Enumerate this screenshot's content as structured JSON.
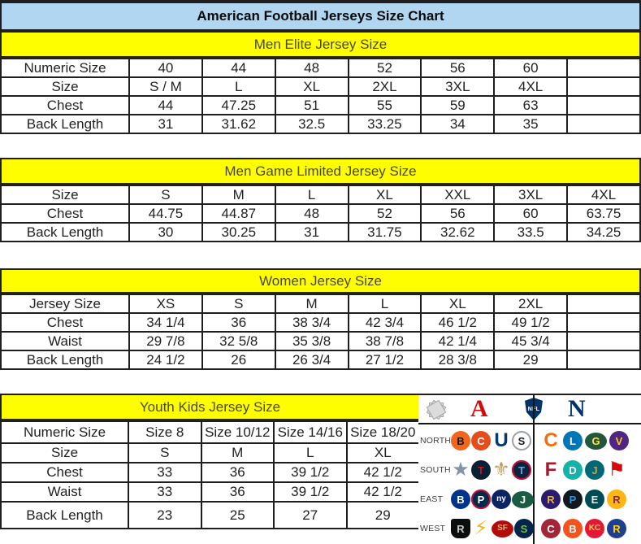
{
  "title": "American Football Jerseys Size Chart",
  "colors": {
    "title_bg": "#b1d6f2",
    "band_bg": "#fefe00",
    "band_text": "#4a4a2e",
    "border": "#1f1f1f",
    "cell_text": "#222222",
    "afc_red": "#d50a0a",
    "nfc_blue": "#013369"
  },
  "tables": [
    {
      "id": "men-elite",
      "header": "Men Elite Jersey Size",
      "rows": [
        [
          "Numeric Size",
          "40",
          "44",
          "48",
          "52",
          "56",
          "60",
          ""
        ],
        [
          "Size",
          "S / M",
          "L",
          "XL",
          "2XL",
          "3XL",
          "4XL",
          ""
        ],
        [
          "Chest",
          "44",
          "47.25",
          "51",
          "55",
          "59",
          "63",
          ""
        ],
        [
          "Back Length",
          "31",
          "31.62",
          "32.5",
          "33.25",
          "34",
          "35",
          ""
        ]
      ]
    },
    {
      "id": "men-game-limited",
      "header": "Men Game Limited Jersey Size",
      "rows": [
        [
          "Size",
          "S",
          "M",
          "L",
          "XL",
          "XXL",
          "3XL",
          "4XL"
        ],
        [
          "Chest",
          "44.75",
          "44.87",
          "48",
          "52",
          "56",
          "60",
          "63.75"
        ],
        [
          "Back Length",
          "30",
          "30.25",
          "31",
          "31.75",
          "32.62",
          "33.5",
          "34.25"
        ]
      ]
    },
    {
      "id": "women",
      "header": "Women Jersey Size",
      "rows": [
        [
          "Jersey Size",
          "XS",
          "S",
          "M",
          "L",
          "XL",
          "2XL",
          ""
        ],
        [
          "Chest",
          "34 1/4",
          "36",
          "38 3/4",
          "42 3/4",
          "46 1/2",
          "49 1/2",
          ""
        ],
        [
          "Waist",
          "29 7/8",
          "32 5/8",
          "35 3/8",
          "38 7/8",
          "42 1/4",
          "45 3/4",
          ""
        ],
        [
          "Back Length",
          "24 1/2",
          "26",
          "26 3/4",
          "27 1/2",
          "28 3/8",
          "29",
          ""
        ]
      ]
    },
    {
      "id": "youth",
      "header": "Youth Kids Jersey Size",
      "rows": [
        [
          "Numeric Size",
          "Size 8",
          "Size 10/12",
          "Size 14/16",
          "Size 18/20"
        ],
        [
          "Size",
          "S",
          "M",
          "L",
          "XL"
        ],
        [
          "Chest",
          "33",
          "36",
          "39 1/2",
          "42 1/2"
        ],
        [
          "Waist",
          "33",
          "36",
          "39 1/2",
          "42 1/2"
        ],
        [
          "Back Length",
          "23",
          "25",
          "27",
          "29"
        ]
      ]
    }
  ],
  "conferences": {
    "afc_label": "A",
    "nfl_label": "NFL",
    "nfc_label": "N",
    "division_rows": [
      {
        "label": "NORTH",
        "afc": [
          {
            "name": "bengals",
            "glyph": "B",
            "shape": "circle",
            "bg": "#f2651c",
            "fg": "#141414"
          },
          {
            "name": "browns",
            "glyph": "C",
            "shape": "circle",
            "bg": "#e64d1c",
            "fg": "#ffffff"
          },
          {
            "name": "colts",
            "glyph": "U",
            "shape": "text",
            "bg": "",
            "fg": "#003a70"
          },
          {
            "name": "steelers",
            "glyph": "S",
            "shape": "circle",
            "bg": "#ffffff",
            "fg": "#1a1a1a",
            "ring": "#9aa0a6"
          }
        ],
        "nfc": [
          {
            "name": "bears",
            "glyph": "C",
            "shape": "text",
            "bg": "",
            "fg": "#f66b0c"
          },
          {
            "name": "lions",
            "glyph": "L",
            "shape": "circle",
            "bg": "#0076b6",
            "fg": "#ffffff"
          },
          {
            "name": "packers",
            "glyph": "G",
            "shape": "oval",
            "bg": "#24553d",
            "fg": "#ffe047"
          },
          {
            "name": "vikings",
            "glyph": "V",
            "shape": "circle",
            "bg": "#4f2683",
            "fg": "#ffc62f"
          }
        ]
      },
      {
        "label": "SOUTH",
        "afc": [
          {
            "name": "cowboys",
            "glyph": "★",
            "shape": "text",
            "bg": "",
            "fg": "#8295a6"
          },
          {
            "name": "texans",
            "glyph": "T",
            "shape": "circle",
            "bg": "#0a2133",
            "fg": "#c41230"
          },
          {
            "name": "saints",
            "glyph": "⚜",
            "shape": "text",
            "bg": "",
            "fg": "#bf9d5e"
          },
          {
            "name": "titans",
            "glyph": "T",
            "shape": "circle",
            "bg": "#0c2340",
            "fg": "#66a5dc",
            "ring": "#c8102e"
          }
        ],
        "nfc": [
          {
            "name": "falcons",
            "glyph": "F",
            "shape": "text",
            "bg": "",
            "fg": "#a71930"
          },
          {
            "name": "dolphins",
            "glyph": "D",
            "shape": "circle",
            "bg": "#15b2a8",
            "fg": "#ffffff"
          },
          {
            "name": "jaguars",
            "glyph": "J",
            "shape": "circle",
            "bg": "#006778",
            "fg": "#d7a22a"
          },
          {
            "name": "buccaneers",
            "glyph": "⚑",
            "shape": "text",
            "bg": "",
            "fg": "#d50a0a"
          }
        ]
      },
      {
        "label": "EAST",
        "afc": [
          {
            "name": "bills",
            "glyph": "B",
            "shape": "circle",
            "bg": "#00338d",
            "fg": "#ffffff"
          },
          {
            "name": "patriots",
            "glyph": "P",
            "shape": "circle",
            "bg": "#002a4d",
            "fg": "#ffffff",
            "ring": "#c60c30"
          },
          {
            "name": "giants",
            "glyph": "ny",
            "shape": "circle",
            "bg": "#0b2265",
            "fg": "#ffffff"
          },
          {
            "name": "jets",
            "glyph": "J",
            "shape": "oval",
            "bg": "#1a5c43",
            "fg": "#ffffff"
          }
        ],
        "nfc": [
          {
            "name": "ravens",
            "glyph": "R",
            "shape": "circle",
            "bg": "#2a1a70",
            "fg": "#e3b54c"
          },
          {
            "name": "panthers",
            "glyph": "P",
            "shape": "circle",
            "bg": "#11181f",
            "fg": "#2f95dd"
          },
          {
            "name": "eagles",
            "glyph": "E",
            "shape": "circle",
            "bg": "#004c54",
            "fg": "#e6e9ea"
          },
          {
            "name": "redskins",
            "glyph": "R",
            "shape": "circle",
            "bg": "#ffb612",
            "fg": "#7c2d3f"
          }
        ]
      },
      {
        "label": "WEST",
        "afc": [
          {
            "name": "raiders",
            "glyph": "R",
            "shape": "shield",
            "bg": "#0d0d0d",
            "fg": "#c4c9cc"
          },
          {
            "name": "chargers",
            "glyph": "⚡",
            "shape": "text",
            "bg": "",
            "fg": "#f3b229"
          },
          {
            "name": "49ers",
            "glyph": "SF",
            "shape": "oval",
            "bg": "#b00c0c",
            "fg": "#d9b778"
          },
          {
            "name": "seahawks",
            "glyph": "S",
            "shape": "circle",
            "bg": "#03244d",
            "fg": "#76c043"
          }
        ],
        "nfc": [
          {
            "name": "cardinals",
            "glyph": "C",
            "shape": "circle",
            "bg": "#a32638",
            "fg": "#ffffff"
          },
          {
            "name": "broncos",
            "glyph": "B",
            "shape": "circle",
            "bg": "#f4531c",
            "fg": "#ffffff"
          },
          {
            "name": "chiefs",
            "glyph": "KC",
            "shape": "circle",
            "bg": "#e31837",
            "fg": "#ffd24a"
          },
          {
            "name": "rams",
            "glyph": "R",
            "shape": "circle",
            "bg": "#1c3f94",
            "fg": "#ffd100"
          }
        ]
      }
    ]
  }
}
